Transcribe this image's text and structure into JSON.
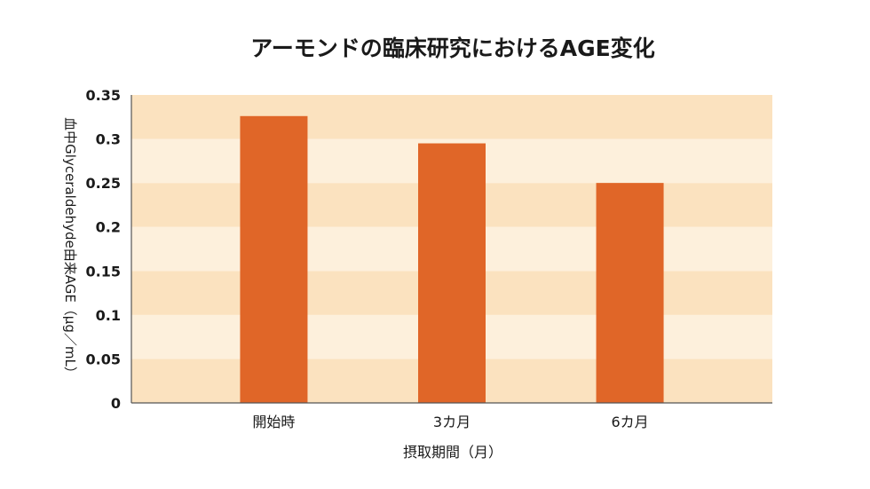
{
  "chart_data": {
    "type": "bar",
    "title": "アーモンドの臨床研究におけるAGE変化",
    "xlabel": "摂取期間（月）",
    "ylabel": "血中Glyceraldehyde由来AGE（μg／mL）",
    "categories": [
      "開始時",
      "3カ月",
      "6カ月"
    ],
    "values": [
      0.326,
      0.295,
      0.25
    ],
    "ylim": [
      0,
      0.35
    ],
    "yticks": [
      0,
      0.05,
      0.1,
      0.15,
      0.2,
      0.25,
      0.3,
      0.35
    ],
    "ytick_labels": [
      "0",
      "0.05",
      "0.1",
      "0.15",
      "0.2",
      "0.25",
      "0.3",
      "0.35"
    ],
    "grid": "horizontal bands",
    "legend": "none"
  },
  "colors": {
    "bar": "#e06628",
    "band_dark": "#fbe2bf",
    "band_light": "#fdf0dc",
    "axis": "#555555",
    "text": "#1a1a1a"
  }
}
